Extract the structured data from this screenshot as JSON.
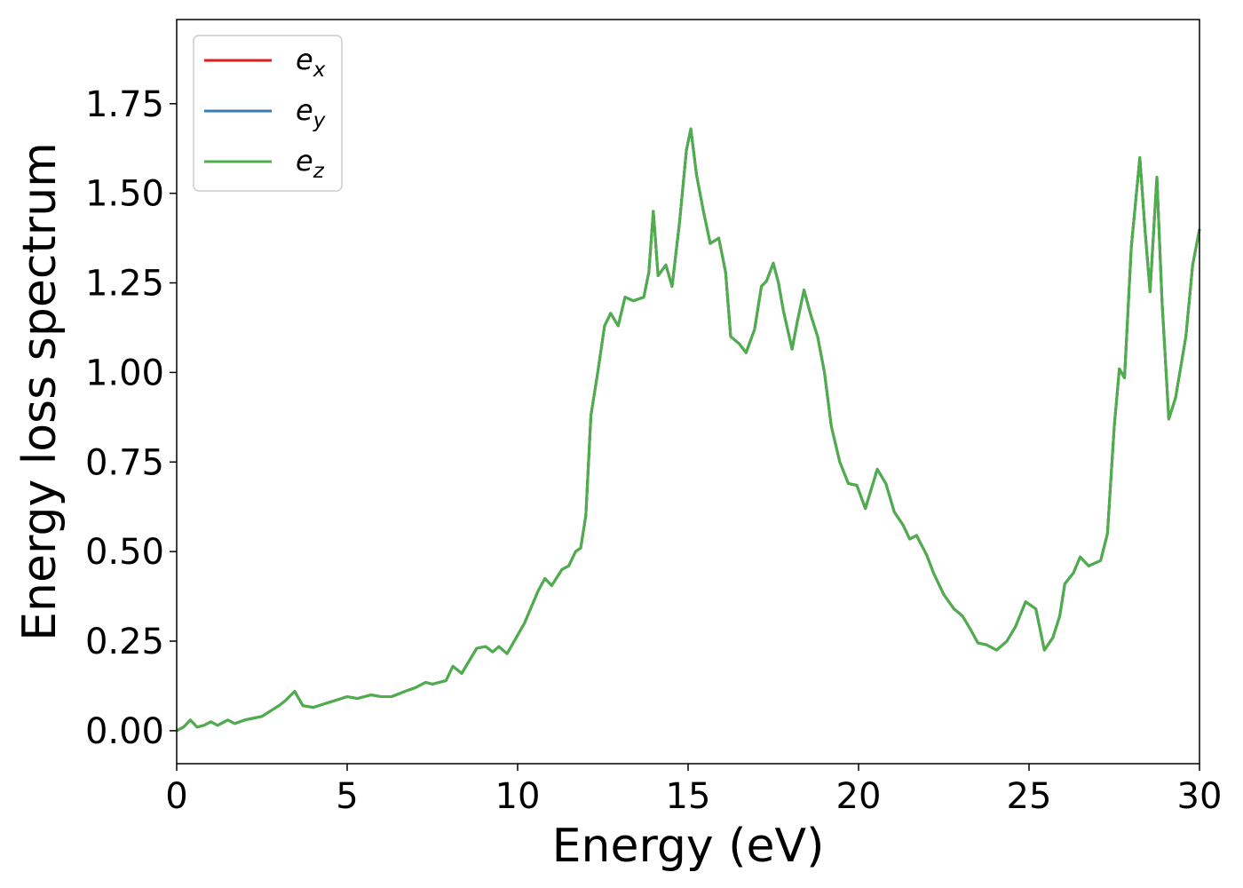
{
  "chart_data": {
    "type": "line",
    "xlabel": "Energy (eV)",
    "ylabel": "Energy loss spectrum",
    "xlim": [
      0,
      30
    ],
    "xticks": [
      0,
      5,
      10,
      15,
      20,
      25,
      30
    ],
    "ylim": [
      -0.092,
      1.985
    ],
    "yticks": [
      {
        "value": 0,
        "label": "0.00"
      },
      {
        "value": 0.25,
        "label": "0.25"
      },
      {
        "value": 0.5,
        "label": "0.50"
      },
      {
        "value": 0.75,
        "label": "0.75"
      },
      {
        "value": 1,
        "label": "1.00"
      },
      {
        "value": 1.25,
        "label": "1.25"
      },
      {
        "value": 1.5,
        "label": "1.50"
      },
      {
        "value": 1.75,
        "label": "1.75"
      }
    ],
    "grid": false,
    "legend": "upper left",
    "x": [
      0,
      0.2,
      0.4,
      0.6,
      0.8,
      1.0,
      1.2,
      1.5,
      1.7,
      2.0,
      2.5,
      3.0,
      3.2,
      3.46,
      3.7,
      4.0,
      4.5,
      5.0,
      5.3,
      5.7,
      6.0,
      6.3,
      6.7,
      7.0,
      7.3,
      7.5,
      7.9,
      8.1,
      8.36,
      8.8,
      9.06,
      9.27,
      9.45,
      9.69,
      10.2,
      10.6,
      10.8,
      11.0,
      11.3,
      11.5,
      11.7,
      11.85,
      12.0,
      12.15,
      12.35,
      12.55,
      12.73,
      12.95,
      13.15,
      13.4,
      13.7,
      13.85,
      13.98,
      14.12,
      14.35,
      14.53,
      14.75,
      14.95,
      15.08,
      15.25,
      15.45,
      15.65,
      15.9,
      16.1,
      16.25,
      16.5,
      16.7,
      16.95,
      17.15,
      17.3,
      17.5,
      17.65,
      17.8,
      18.05,
      18.2,
      18.4,
      18.6,
      18.8,
      19.0,
      19.2,
      19.45,
      19.7,
      19.95,
      20.2,
      20.55,
      20.8,
      21.05,
      21.3,
      21.5,
      21.7,
      22.0,
      22.2,
      22.5,
      22.8,
      23.05,
      23.3,
      23.5,
      23.75,
      24.05,
      24.35,
      24.6,
      24.9,
      25.2,
      25.45,
      25.7,
      25.9,
      26.05,
      26.3,
      26.5,
      26.75,
      27.1,
      27.3,
      27.5,
      27.65,
      27.8,
      28.0,
      28.25,
      28.4,
      28.55,
      28.75,
      28.9,
      29.1,
      29.3,
      29.6,
      29.8,
      30.0
    ],
    "series": [
      {
        "name": "ex",
        "color": "#e41a1c",
        "values": [
          0,
          0.01,
          0.03,
          0.01,
          0.015,
          0.025,
          0.015,
          0.03,
          0.02,
          0.03,
          0.04,
          0.07,
          0.085,
          0.11,
          0.07,
          0.065,
          0.08,
          0.095,
          0.09,
          0.1,
          0.095,
          0.095,
          0.11,
          0.12,
          0.135,
          0.13,
          0.14,
          0.18,
          0.16,
          0.23,
          0.235,
          0.22,
          0.235,
          0.215,
          0.3,
          0.39,
          0.425,
          0.405,
          0.45,
          0.46,
          0.5,
          0.51,
          0.6,
          0.88,
          1.0,
          1.13,
          1.165,
          1.13,
          1.21,
          1.2,
          1.21,
          1.28,
          1.45,
          1.27,
          1.3,
          1.24,
          1.42,
          1.62,
          1.68,
          1.55,
          1.45,
          1.36,
          1.375,
          1.28,
          1.1,
          1.08,
          1.055,
          1.12,
          1.24,
          1.255,
          1.305,
          1.25,
          1.17,
          1.065,
          1.14,
          1.23,
          1.16,
          1.1,
          1.0,
          0.85,
          0.75,
          0.69,
          0.685,
          0.62,
          0.73,
          0.69,
          0.61,
          0.575,
          0.535,
          0.545,
          0.49,
          0.44,
          0.38,
          0.34,
          0.32,
          0.28,
          0.245,
          0.24,
          0.225,
          0.25,
          0.29,
          0.36,
          0.34,
          0.225,
          0.26,
          0.32,
          0.41,
          0.44,
          0.485,
          0.46,
          0.475,
          0.55,
          0.85,
          1.01,
          0.985,
          1.35,
          1.6,
          1.4,
          1.225,
          1.545,
          1.2,
          0.87,
          0.93,
          1.1,
          1.3,
          1.4
        ]
      },
      {
        "name": "ey",
        "color": "#377eb8",
        "values": [
          0,
          0.01,
          0.03,
          0.01,
          0.015,
          0.025,
          0.015,
          0.03,
          0.02,
          0.03,
          0.04,
          0.07,
          0.085,
          0.11,
          0.07,
          0.065,
          0.08,
          0.095,
          0.09,
          0.1,
          0.095,
          0.095,
          0.11,
          0.12,
          0.135,
          0.13,
          0.14,
          0.18,
          0.16,
          0.23,
          0.235,
          0.22,
          0.235,
          0.215,
          0.3,
          0.39,
          0.425,
          0.405,
          0.45,
          0.46,
          0.5,
          0.51,
          0.6,
          0.88,
          1.0,
          1.13,
          1.165,
          1.13,
          1.21,
          1.2,
          1.21,
          1.28,
          1.45,
          1.27,
          1.3,
          1.24,
          1.42,
          1.62,
          1.68,
          1.55,
          1.45,
          1.36,
          1.375,
          1.28,
          1.1,
          1.08,
          1.055,
          1.12,
          1.24,
          1.255,
          1.305,
          1.25,
          1.17,
          1.065,
          1.14,
          1.23,
          1.16,
          1.1,
          1.0,
          0.85,
          0.75,
          0.69,
          0.685,
          0.62,
          0.73,
          0.69,
          0.61,
          0.575,
          0.535,
          0.545,
          0.49,
          0.44,
          0.38,
          0.34,
          0.32,
          0.28,
          0.245,
          0.24,
          0.225,
          0.25,
          0.29,
          0.36,
          0.34,
          0.225,
          0.26,
          0.32,
          0.41,
          0.44,
          0.485,
          0.46,
          0.475,
          0.55,
          0.85,
          1.01,
          0.985,
          1.35,
          1.6,
          1.4,
          1.225,
          1.545,
          1.2,
          0.87,
          0.93,
          1.1,
          1.3,
          1.4
        ]
      },
      {
        "name": "ez",
        "color": "#4daf4a",
        "values": [
          0,
          0.01,
          0.03,
          0.01,
          0.015,
          0.025,
          0.015,
          0.03,
          0.02,
          0.03,
          0.04,
          0.07,
          0.085,
          0.11,
          0.07,
          0.065,
          0.08,
          0.095,
          0.09,
          0.1,
          0.095,
          0.095,
          0.11,
          0.12,
          0.135,
          0.13,
          0.14,
          0.18,
          0.16,
          0.23,
          0.235,
          0.22,
          0.235,
          0.215,
          0.3,
          0.39,
          0.425,
          0.405,
          0.45,
          0.46,
          0.5,
          0.51,
          0.6,
          0.88,
          1.0,
          1.13,
          1.165,
          1.13,
          1.21,
          1.2,
          1.21,
          1.28,
          1.45,
          1.27,
          1.3,
          1.24,
          1.42,
          1.62,
          1.68,
          1.55,
          1.45,
          1.36,
          1.375,
          1.28,
          1.1,
          1.08,
          1.055,
          1.12,
          1.24,
          1.255,
          1.305,
          1.25,
          1.17,
          1.065,
          1.14,
          1.23,
          1.16,
          1.1,
          1.0,
          0.85,
          0.75,
          0.69,
          0.685,
          0.62,
          0.73,
          0.69,
          0.61,
          0.575,
          0.535,
          0.545,
          0.49,
          0.44,
          0.38,
          0.34,
          0.32,
          0.28,
          0.245,
          0.24,
          0.225,
          0.25,
          0.29,
          0.36,
          0.34,
          0.225,
          0.26,
          0.32,
          0.41,
          0.44,
          0.485,
          0.46,
          0.475,
          0.55,
          0.85,
          1.01,
          0.985,
          1.35,
          1.6,
          1.4,
          1.225,
          1.545,
          1.2,
          0.87,
          0.93,
          1.1,
          1.3,
          1.4
        ]
      }
    ]
  }
}
